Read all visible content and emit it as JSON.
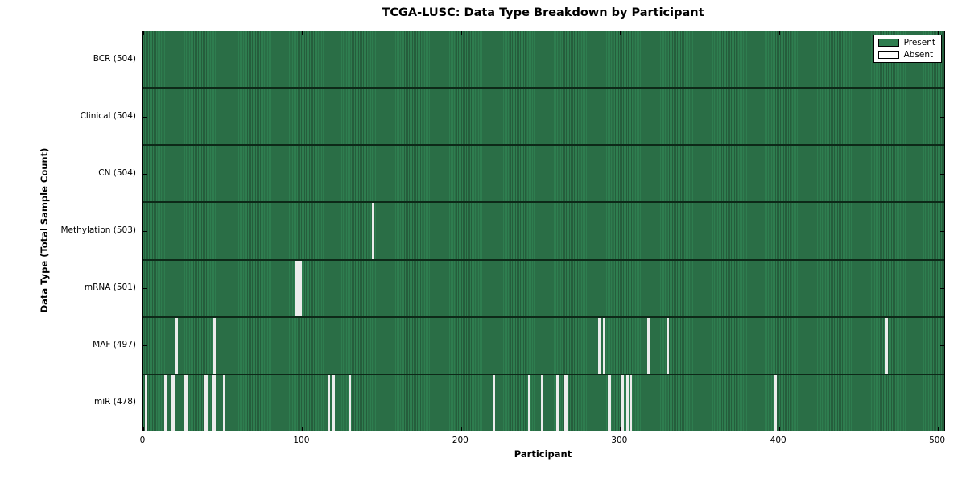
{
  "title": "TCGA-LUSC: Data Type Breakdown by Participant",
  "xlabel": "Participant",
  "ylabel": "Data Type (Total Sample Count)",
  "legend": {
    "present_label": "Present",
    "absent_label": "Absent"
  },
  "colors": {
    "present_green": "#2e7d4f",
    "present_green_dark": "#255e3c",
    "absent_white": "#ececec",
    "row_divider": "#0d2918",
    "axis_black": "#000000",
    "background": "#ffffff"
  },
  "chart_data": {
    "type": "heatmap",
    "title": "TCGA-LUSC: Data Type Breakdown by Participant",
    "xlabel": "Participant",
    "ylabel": "Data Type (Total Sample Count)",
    "legend_entries": [
      "Present",
      "Absent"
    ],
    "legend_position": "upper right",
    "grid": false,
    "xlim": [
      0,
      504
    ],
    "x_ticks": [
      0,
      100,
      200,
      300,
      400,
      500
    ],
    "total_participants": 504,
    "rows": [
      {
        "data_type": "BCR",
        "label": "BCR (504)",
        "sample_count": 504,
        "absent_count": 0,
        "absent_participants": []
      },
      {
        "data_type": "Clinical",
        "label": "Clinical (504)",
        "sample_count": 504,
        "absent_count": 0,
        "absent_participants": []
      },
      {
        "data_type": "CN",
        "label": "CN (504)",
        "sample_count": 504,
        "absent_count": 0,
        "absent_participants": []
      },
      {
        "data_type": "Methylation",
        "label": "Methylation (503)",
        "sample_count": 503,
        "absent_count": 1,
        "absent_participants": [
          144
        ]
      },
      {
        "data_type": "mRNA",
        "label": "mRNA (501)",
        "sample_count": 501,
        "absent_count": 3,
        "absent_participants": [
          95,
          96,
          98
        ]
      },
      {
        "data_type": "MAF",
        "label": "MAF (497)",
        "sample_count": 497,
        "absent_count": 7,
        "absent_participants": [
          20,
          44,
          286,
          289,
          317,
          329,
          467
        ]
      },
      {
        "data_type": "miR",
        "label": "miR (478)",
        "sample_count": 478,
        "absent_count": 26,
        "absent_participants": [
          1,
          13,
          17,
          18,
          26,
          27,
          38,
          39,
          43,
          44,
          50,
          116,
          119,
          129,
          220,
          242,
          250,
          260,
          265,
          266,
          292,
          293,
          301,
          304,
          306,
          397
        ]
      }
    ]
  }
}
